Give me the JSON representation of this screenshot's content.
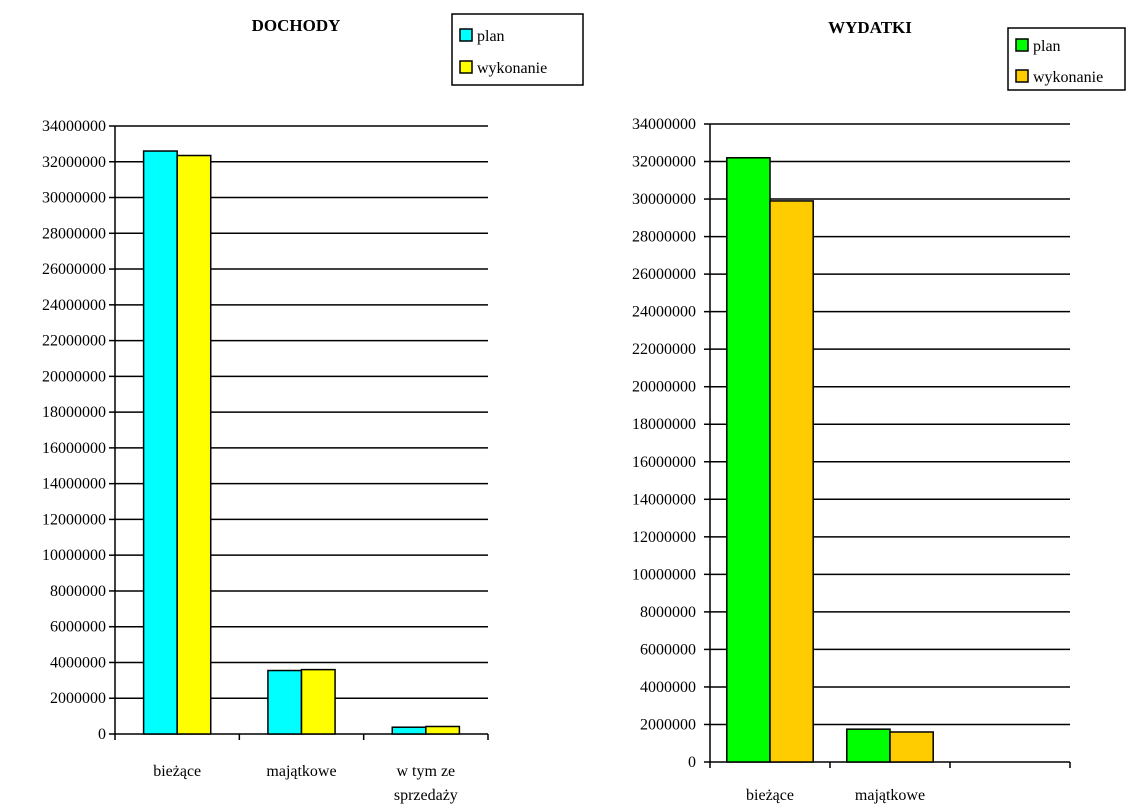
{
  "chart_data": [
    {
      "type": "bar",
      "title": "DOCHODY",
      "categories": [
        [
          "bieżące"
        ],
        [
          "majątkowe"
        ],
        [
          "w tym ze",
          "sprzedaży"
        ]
      ],
      "series": [
        {
          "name": "plan",
          "color": "#00FFFF",
          "values": [
            32600000,
            3550000,
            380000
          ]
        },
        {
          "name": "wykonanie",
          "color": "#FFFF00",
          "values": [
            32350000,
            3600000,
            420000
          ]
        }
      ],
      "ylim": [
        0,
        34000000
      ],
      "ytick_step": 2000000,
      "yticks": [
        "0",
        "2000000",
        "4000000",
        "6000000",
        "8000000",
        "10000000",
        "12000000",
        "14000000",
        "16000000",
        "18000000",
        "20000000",
        "22000000",
        "24000000",
        "26000000",
        "28000000",
        "30000000",
        "32000000",
        "34000000"
      ],
      "grid": true,
      "legend": "top-right"
    },
    {
      "type": "bar",
      "title": "WYDATKI",
      "categories": [
        [
          "bieżące"
        ],
        [
          "majątkowe"
        ],
        [
          ""
        ]
      ],
      "series": [
        {
          "name": "plan",
          "color": "#00FF00",
          "values": [
            32200000,
            1750000,
            0
          ]
        },
        {
          "name": "wykonanie",
          "color": "#FFCC00",
          "values": [
            29900000,
            1600000,
            0
          ]
        }
      ],
      "ylim": [
        0,
        34000000
      ],
      "ytick_step": 2000000,
      "yticks": [
        "0",
        "2000000",
        "4000000",
        "6000000",
        "8000000",
        "10000000",
        "12000000",
        "14000000",
        "16000000",
        "18000000",
        "20000000",
        "22000000",
        "24000000",
        "26000000",
        "28000000",
        "30000000",
        "32000000",
        "34000000"
      ],
      "grid": true,
      "legend": "top-right"
    }
  ]
}
